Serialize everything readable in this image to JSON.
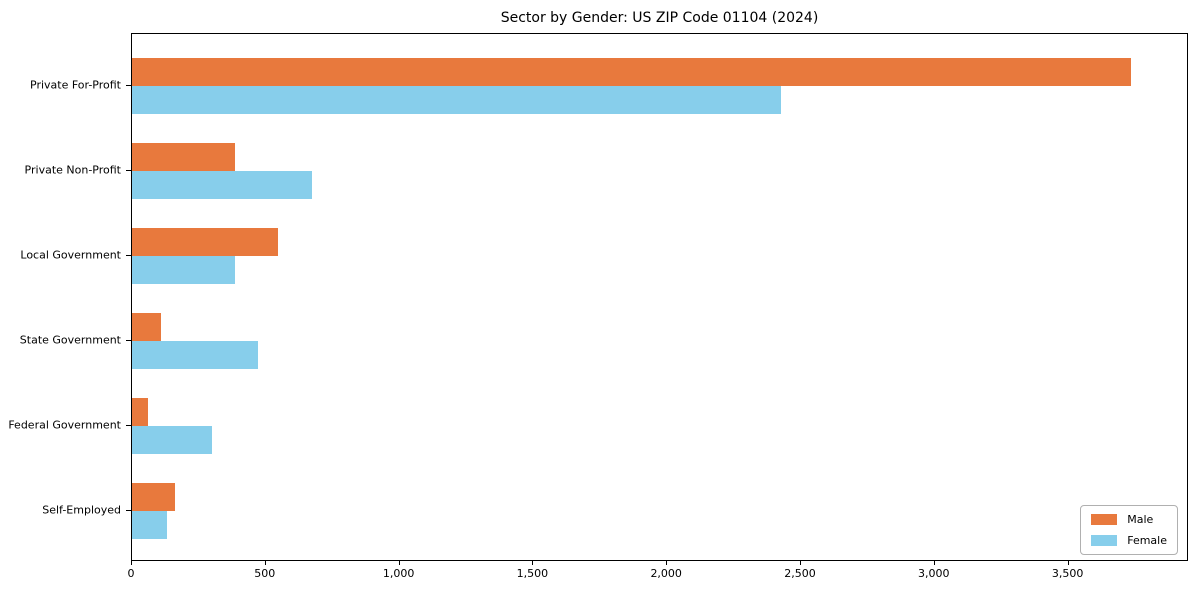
{
  "title": "Sector by Gender: US ZIP Code 01104 (2024)",
  "colors": {
    "male": "#E8793D",
    "female": "#87CEEB",
    "axis": "#000000",
    "legend_border": "#b0b0b0",
    "background": "#ffffff"
  },
  "legend": {
    "position": "lower right",
    "entries": [
      {
        "label": "Male",
        "color": "#E8793D"
      },
      {
        "label": "Female",
        "color": "#87CEEB"
      }
    ]
  },
  "chart_data": {
    "type": "bar",
    "orientation": "horizontal",
    "title": "Sector by Gender: US ZIP Code 01104 (2024)",
    "categories": [
      "Private For-Profit",
      "Private Non-Profit",
      "Local Government",
      "State Government",
      "Federal Government",
      "Self-Employed"
    ],
    "series": [
      {
        "name": "Male",
        "color": "#E8793D",
        "values": [
          3740,
          385,
          545,
          110,
          60,
          160
        ]
      },
      {
        "name": "Female",
        "color": "#87CEEB",
        "values": [
          2430,
          675,
          385,
          470,
          300,
          130
        ]
      }
    ],
    "xlabel": "",
    "ylabel": "",
    "xlim": [
      0,
      3950
    ],
    "x_ticks": [
      0,
      500,
      1000,
      1500,
      2000,
      2500,
      3000,
      3500
    ],
    "x_tick_labels": [
      "0",
      "500",
      "1,000",
      "1,500",
      "2,000",
      "2,500",
      "3,000",
      "3,500"
    ],
    "grid": false,
    "legend_position": "lower right"
  }
}
